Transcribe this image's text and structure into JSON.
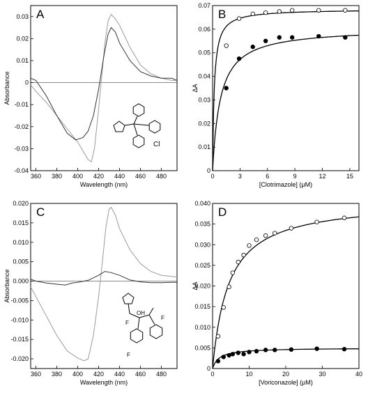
{
  "panels": [
    {
      "label": "A",
      "type": "line",
      "xlabel": "Wavelength (nm)",
      "ylabel": "Absorbance",
      "xlim": [
        355,
        495
      ],
      "ylim": [
        -0.04,
        0.035
      ],
      "xticks": [
        360,
        380,
        400,
        420,
        440,
        460,
        480
      ],
      "yticks": [
        -0.04,
        -0.03,
        -0.02,
        -0.01,
        0,
        0.01,
        0.02,
        0.03
      ],
      "ytick_labels": [
        "-0.04",
        "-0.03",
        "-0.02",
        "-0.01",
        "0",
        "0.01",
        "0.02",
        "0.03"
      ],
      "zero_line": true,
      "inset_structure": {
        "atom_label": "Cl",
        "drawing": "clotrimazole-structure"
      },
      "series": [
        {
          "color": "#9a9a9a",
          "points": [
            [
              355,
              -0.001
            ],
            [
              360,
              -0.004
            ],
            [
              370,
              -0.009
            ],
            [
              380,
              -0.015
            ],
            [
              390,
              -0.021
            ],
            [
              400,
              -0.027
            ],
            [
              405,
              -0.031
            ],
            [
              410,
              -0.035
            ],
            [
              413,
              -0.036
            ],
            [
              416,
              -0.03
            ],
            [
              420,
              -0.012
            ],
            [
              423,
              0.003
            ],
            [
              426,
              0.018
            ],
            [
              429,
              0.028
            ],
            [
              432,
              0.031
            ],
            [
              436,
              0.029
            ],
            [
              440,
              0.026
            ],
            [
              450,
              0.016
            ],
            [
              460,
              0.008
            ],
            [
              470,
              0.004
            ],
            [
              480,
              0.002
            ],
            [
              490,
              0.001
            ],
            [
              495,
              0.001
            ]
          ]
        },
        {
          "color": "#333333",
          "points": [
            [
              355,
              0.002
            ],
            [
              360,
              0.001
            ],
            [
              370,
              -0.006
            ],
            [
              380,
              -0.015
            ],
            [
              390,
              -0.023
            ],
            [
              398,
              -0.026
            ],
            [
              405,
              -0.025
            ],
            [
              410,
              -0.022
            ],
            [
              415,
              -0.015
            ],
            [
              420,
              -0.003
            ],
            [
              425,
              0.012
            ],
            [
              429,
              0.022
            ],
            [
              432,
              0.025
            ],
            [
              436,
              0.023
            ],
            [
              440,
              0.018
            ],
            [
              450,
              0.01
            ],
            [
              460,
              0.005
            ],
            [
              470,
              0.003
            ],
            [
              480,
              0.002
            ],
            [
              490,
              0.002
            ],
            [
              495,
              0.001
            ]
          ]
        }
      ]
    },
    {
      "label": "B",
      "type": "scatter",
      "xlabel": "[Clotrimazole] (μM)",
      "ylabel": "ΔA",
      "xlim": [
        0,
        16
      ],
      "ylim": [
        0,
        0.07
      ],
      "xticks": [
        0,
        3,
        6,
        9,
        12,
        15
      ],
      "yticks": [
        0,
        0.01,
        0.02,
        0.03,
        0.04,
        0.05,
        0.06,
        0.07
      ],
      "ytick_labels": [
        "0",
        "0.01",
        "0.02",
        "0.03",
        "0.04",
        "0.05",
        "0.06",
        "0.07"
      ],
      "series": [
        {
          "marker": "open",
          "x": [
            1.5,
            2.9,
            4.4,
            5.8,
            7.3,
            8.7,
            11.6,
            14.5
          ],
          "y": [
            0.053,
            0.0645,
            0.0665,
            0.067,
            0.0675,
            0.068,
            0.068,
            0.068
          ],
          "fit": {
            "model": "hyperbolic",
            "Bmax": 0.0685,
            "Kd": 0.18
          }
        },
        {
          "marker": "filled",
          "x": [
            1.5,
            2.9,
            4.4,
            5.8,
            7.3,
            8.7,
            11.6,
            14.5
          ],
          "y": [
            0.035,
            0.0475,
            0.0525,
            0.055,
            0.0565,
            0.0565,
            0.057,
            0.0565
          ],
          "fit": {
            "model": "hyperbolic",
            "Bmax": 0.0605,
            "Kd": 0.85
          }
        }
      ]
    },
    {
      "label": "C",
      "type": "line",
      "xlabel": "Wavelength (nm)",
      "ylabel": "Absorbance",
      "xlim": [
        355,
        495
      ],
      "ylim": [
        -0.0225,
        0.02
      ],
      "xticks": [
        360,
        380,
        400,
        420,
        440,
        460,
        480
      ],
      "yticks": [
        -0.02,
        -0.015,
        -0.01,
        -0.005,
        0,
        0.005,
        0.01,
        0.015,
        0.02
      ],
      "ytick_labels": [
        "-0.020",
        "-0.015",
        "-0.010",
        "-0.005",
        "0.000",
        "0.005",
        "0.010",
        "0.015",
        "0.020"
      ],
      "zero_line": true,
      "inset_structure": {
        "atom_labels": [
          "F",
          "OH",
          "F",
          "F"
        ],
        "drawing": "voriconazole-structure"
      },
      "series": [
        {
          "color": "#9a9a9a",
          "points": [
            [
              355,
              -0.0015
            ],
            [
              360,
              -0.004
            ],
            [
              370,
              -0.009
            ],
            [
              380,
              -0.014
            ],
            [
              390,
              -0.018
            ],
            [
              400,
              -0.0198
            ],
            [
              406,
              -0.0205
            ],
            [
              410,
              -0.02
            ],
            [
              415,
              -0.014
            ],
            [
              420,
              -0.004
            ],
            [
              424,
              0.006
            ],
            [
              427,
              0.014
            ],
            [
              430,
              0.0185
            ],
            [
              432,
              0.019
            ],
            [
              436,
              0.017
            ],
            [
              440,
              0.0135
            ],
            [
              450,
              0.008
            ],
            [
              460,
              0.0045
            ],
            [
              470,
              0.0025
            ],
            [
              480,
              0.0015
            ],
            [
              490,
              0.0012
            ],
            [
              495,
              0.001
            ]
          ]
        },
        {
          "color": "#333333",
          "points": [
            [
              355,
              0.0005
            ],
            [
              360,
              0
            ],
            [
              370,
              -0.0005
            ],
            [
              380,
              -0.0008
            ],
            [
              388,
              -0.001
            ],
            [
              395,
              -0.0005
            ],
            [
              400,
              -0.0003
            ],
            [
              410,
              0.0002
            ],
            [
              420,
              0.0015
            ],
            [
              426,
              0.0025
            ],
            [
              432,
              0.0022
            ],
            [
              440,
              0.0015
            ],
            [
              450,
              0.0003
            ],
            [
              460,
              -0.0002
            ],
            [
              470,
              -0.0004
            ],
            [
              480,
              -0.0004
            ],
            [
              490,
              -0.0003
            ],
            [
              495,
              -0.0003
            ]
          ]
        }
      ]
    },
    {
      "label": "D",
      "type": "scatter",
      "xlabel": "[Voriconazole] (μM)",
      "ylabel": "ΔA",
      "xlim": [
        0,
        40
      ],
      "ylim": [
        0,
        0.04
      ],
      "xticks": [
        0,
        10,
        20,
        30,
        40
      ],
      "yticks": [
        0,
        0.005,
        0.01,
        0.015,
        0.02,
        0.025,
        0.03,
        0.035,
        0.04
      ],
      "ytick_labels": [
        "0",
        "0.005",
        "0.010",
        "0.015",
        "0.020",
        "0.025",
        "0.030",
        "0.035",
        "0.040"
      ],
      "series": [
        {
          "marker": "open",
          "x": [
            1.5,
            3,
            4.5,
            5.5,
            7,
            8.5,
            10,
            12,
            14.5,
            17,
            21.5,
            28.5,
            36
          ],
          "y": [
            0.0078,
            0.0148,
            0.0198,
            0.0232,
            0.0258,
            0.0275,
            0.0298,
            0.0312,
            0.0322,
            0.0328,
            0.034,
            0.0355,
            0.0365
          ],
          "fit": {
            "model": "hyperbolic",
            "Bmax": 0.0408,
            "Kd": 4.4
          }
        },
        {
          "marker": "filled",
          "x": [
            1.5,
            3,
            4.5,
            5.5,
            7,
            8.5,
            10,
            12,
            14.5,
            17,
            21.5,
            28.5,
            36
          ],
          "y": [
            0.0018,
            0.0028,
            0.0032,
            0.0035,
            0.0038,
            0.0035,
            0.004,
            0.0042,
            0.0045,
            0.0045,
            0.0046,
            0.0048,
            0.0047
          ],
          "fit": {
            "model": "hyperbolic",
            "Bmax": 0.005,
            "Kd": 1.8
          }
        }
      ]
    }
  ]
}
